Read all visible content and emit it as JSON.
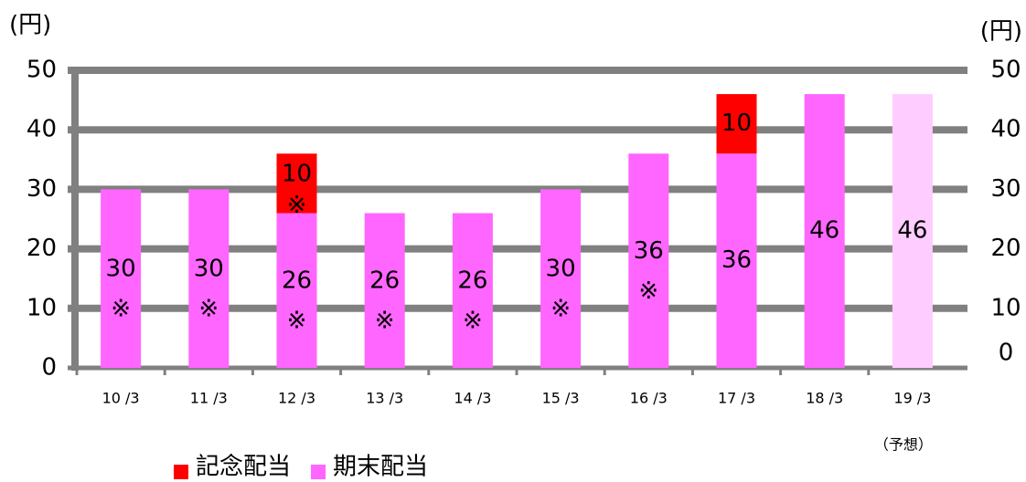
{
  "chart_data": {
    "type": "stacked_bar",
    "y_label": "(円)",
    "y2_label": "(円)",
    "categories": [
      "10 /3",
      "11 /3",
      "12 /3",
      "13 /3",
      "14 /3",
      "15 /3",
      "16 /3",
      "17 /3",
      "18 /3",
      "19 /3"
    ],
    "series": [
      {
        "name": "期末配当",
        "color": "#ff66ff",
        "bar_colors": [
          null,
          null,
          null,
          null,
          null,
          null,
          null,
          null,
          null,
          "#ffccff"
        ],
        "values": [
          30,
          30,
          26,
          26,
          26,
          30,
          36,
          36,
          46,
          46
        ],
        "notes": [
          "※",
          "※",
          "※",
          "※",
          "※",
          "※",
          "※",
          null,
          null,
          null
        ]
      },
      {
        "name": "記念配当",
        "color": "#ff0000",
        "values": [
          null,
          null,
          10,
          null,
          null,
          null,
          null,
          10,
          null,
          null
        ],
        "notes": [
          null,
          null,
          "※",
          null,
          null,
          null,
          null,
          null,
          null,
          null
        ]
      }
    ],
    "annotations": [
      {
        "category": 9,
        "text": "（予想）"
      }
    ],
    "ylim": [
      0,
      50
    ],
    "yticks": [
      0,
      10,
      20,
      30,
      40,
      50
    ],
    "y2lim": [
      0,
      50
    ],
    "y2ticks": [
      0,
      10,
      20,
      30,
      40,
      50
    ],
    "grid": true,
    "grid_color": "#808080",
    "legend": "bottom-left"
  }
}
